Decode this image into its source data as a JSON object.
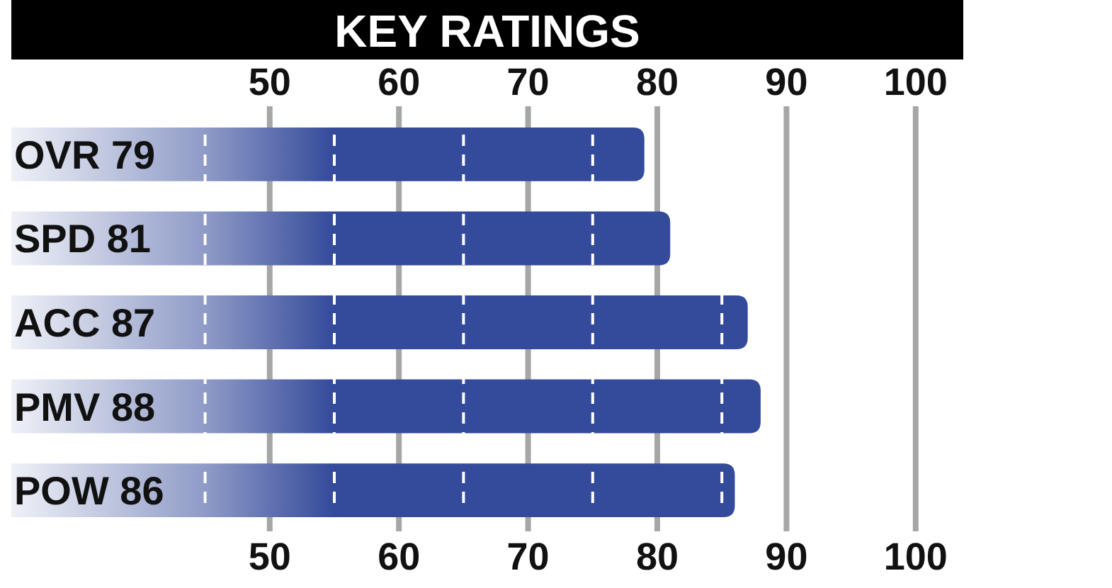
{
  "chart_data": {
    "type": "bar",
    "orientation": "horizontal",
    "title": "KEY RATINGS",
    "categories": [
      "OVR 79",
      "SPD 81",
      "ACC 87",
      "PMV 88",
      "POW 86"
    ],
    "values": [
      79,
      81,
      87,
      88,
      86
    ],
    "color": "#344a9a",
    "xlim": [
      30,
      100
    ],
    "xticks": [
      {
        "value": 45,
        "label": null
      },
      50,
      {
        "value": 55,
        "label": null
      },
      60,
      {
        "value": 65,
        "label": null
      },
      70,
      {
        "value": 75,
        "label": null
      },
      80,
      {
        "value": 85,
        "label": null
      },
      90,
      100
    ],
    "x2lim": [
      30,
      100
    ],
    "x2ticks": [
      50,
      60,
      70,
      80,
      90,
      100
    ],
    "grid": "x"
  }
}
